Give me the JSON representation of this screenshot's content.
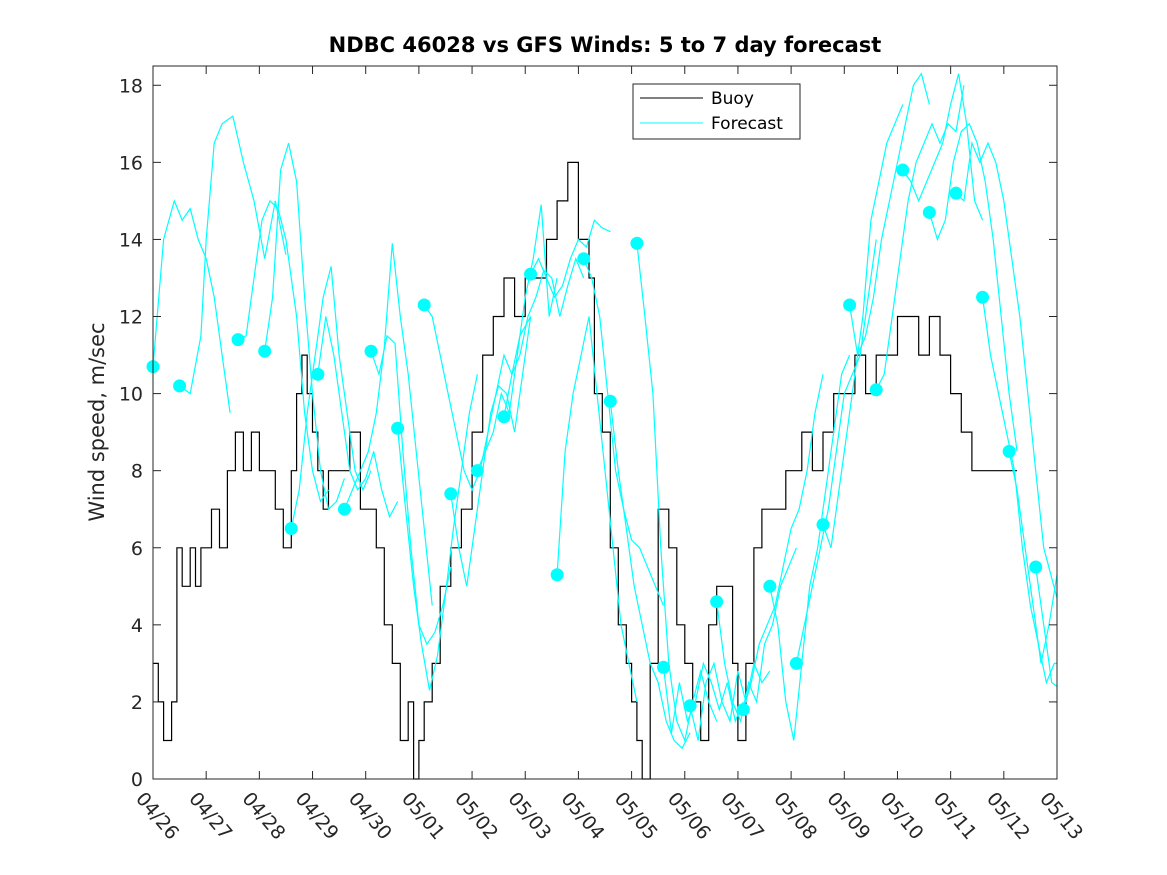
{
  "chart_data": {
    "type": "line",
    "title": "NDBC 46028 vs GFS Winds: 5 to 7 day forecast",
    "ylabel": "Wind speed, m/sec",
    "xlabel": "",
    "ylim": [
      0,
      18.5
    ],
    "xlim": [
      "2024-04-26",
      "2024-05-13"
    ],
    "x_ticks": [
      "04/26",
      "04/27",
      "04/28",
      "04/29",
      "04/30",
      "05/01",
      "05/02",
      "05/03",
      "05/04",
      "05/05",
      "05/06",
      "05/07",
      "05/08",
      "05/09",
      "05/10",
      "05/11",
      "05/12",
      "05/13"
    ],
    "y_ticks": [
      0,
      2,
      4,
      6,
      8,
      10,
      12,
      14,
      16,
      18
    ],
    "legend": {
      "location": "top-center",
      "entries": [
        "Buoy",
        "Forecast"
      ]
    },
    "colors": {
      "buoy": "#000000",
      "forecast": "#00FFFF"
    },
    "buoy": {
      "name": "Buoy",
      "x_days_from_04_26": [
        0.0,
        0.1,
        0.2,
        0.35,
        0.45,
        0.55,
        0.7,
        0.8,
        0.9,
        1.0,
        1.1,
        1.25,
        1.4,
        1.55,
        1.7,
        1.85,
        2.0,
        2.15,
        2.3,
        2.45,
        2.6,
        2.7,
        2.8,
        2.9,
        3.0,
        3.1,
        3.2,
        3.3,
        3.5,
        3.7,
        3.9,
        4.05,
        4.2,
        4.35,
        4.5,
        4.65,
        4.8,
        4.9,
        5.0,
        5.1,
        5.25,
        5.4,
        5.6,
        5.8,
        6.0,
        6.2,
        6.4,
        6.6,
        6.8,
        7.0,
        7.2,
        7.4,
        7.6,
        7.8,
        8.0,
        8.1,
        8.2,
        8.3,
        8.45,
        8.6,
        8.75,
        8.9,
        9.0,
        9.1,
        9.2,
        9.35,
        9.5,
        9.7,
        9.85,
        10.0,
        10.15,
        10.3,
        10.45,
        10.6,
        10.75,
        10.9,
        11.0,
        11.15,
        11.3,
        11.45,
        11.6,
        11.75,
        11.9,
        12.0,
        12.2,
        12.4,
        12.6,
        12.8,
        13.0,
        13.2,
        13.4,
        13.6,
        13.8,
        14.0,
        14.2,
        14.4,
        14.6,
        14.8,
        15.0,
        15.2,
        15.4,
        15.6,
        15.8,
        16.0,
        16.15,
        16.25
      ],
      "values": [
        3,
        2,
        1,
        2,
        6,
        5,
        6,
        5,
        6,
        6,
        7,
        6,
        8,
        9,
        8,
        9,
        8,
        8,
        7,
        6,
        8,
        10,
        11,
        10,
        9,
        8,
        7,
        8,
        8,
        9,
        7,
        7,
        6,
        4,
        3,
        1,
        2,
        0,
        1,
        2,
        3,
        5,
        6,
        7,
        9,
        11,
        12,
        13,
        12,
        13,
        13,
        14,
        15,
        16,
        14,
        14,
        13,
        10,
        9,
        6,
        4,
        3,
        2,
        1,
        0,
        3,
        7,
        6,
        4,
        3,
        2,
        1,
        4,
        5,
        5,
        3,
        1,
        3,
        6,
        7,
        7,
        7,
        8,
        8,
        9,
        8,
        9,
        10,
        10,
        11,
        10,
        11,
        11,
        12,
        12,
        11,
        12,
        11,
        10,
        9,
        8,
        8,
        8,
        8,
        8,
        8
      ]
    },
    "forecasts": [
      {
        "x_days_from_04_26": [
          0.0,
          0.2,
          0.4,
          0.55,
          0.7,
          0.85,
          1.0,
          1.15,
          1.3,
          1.45
        ],
        "values": [
          10.7,
          14.0,
          15.0,
          14.5,
          14.8,
          14.0,
          13.5,
          12.5,
          11.0,
          9.5
        ]
      },
      {
        "x_days_from_04_26": [
          0.5,
          0.7,
          0.9,
          1.0,
          1.15,
          1.3,
          1.5,
          1.7,
          1.9,
          2.1,
          2.3,
          2.5
        ],
        "values": [
          10.2,
          10.0,
          11.5,
          14.0,
          16.5,
          17.0,
          17.2,
          16.0,
          15.0,
          13.5,
          15.0,
          13.6
        ]
      },
      {
        "x_days_from_04_26": [
          1.6,
          1.75,
          1.9,
          2.05,
          2.2,
          2.35,
          2.5,
          2.7,
          2.85,
          3.0,
          3.15,
          3.3
        ],
        "values": [
          11.4,
          11.5,
          13.0,
          14.5,
          15.0,
          14.8,
          14.0,
          12.0,
          9.5,
          8.0,
          7.2,
          7.5
        ]
      },
      {
        "x_days_from_04_26": [
          2.1,
          2.25,
          2.4,
          2.55,
          2.7,
          2.85,
          3.0,
          3.15,
          3.3,
          3.45,
          3.6
        ],
        "values": [
          11.1,
          12.5,
          15.8,
          16.5,
          15.5,
          12.5,
          10.0,
          8.0,
          7.0,
          7.2,
          7.8
        ]
      },
      {
        "x_days_from_04_26": [
          2.6,
          2.75,
          2.9,
          3.05,
          3.2,
          3.35,
          3.5,
          3.65,
          3.8,
          3.95,
          4.1
        ],
        "values": [
          6.5,
          7.5,
          9.5,
          11.0,
          12.5,
          13.3,
          11.0,
          9.5,
          8.0,
          7.5,
          8.0
        ]
      },
      {
        "x_days_from_04_26": [
          3.1,
          3.25,
          3.4,
          3.55,
          3.7,
          3.85,
          4.0,
          4.15,
          4.3,
          4.45,
          4.6
        ],
        "values": [
          10.5,
          12.0,
          11.0,
          9.5,
          8.0,
          7.5,
          7.8,
          8.5,
          7.5,
          6.8,
          7.2
        ]
      },
      {
        "x_days_from_04_26": [
          3.6,
          3.75,
          3.9,
          4.05,
          4.2,
          4.35,
          4.5,
          4.65,
          4.8,
          4.95,
          5.1,
          5.25
        ],
        "values": [
          7.0,
          7.5,
          8.0,
          8.5,
          9.5,
          11.2,
          13.9,
          12.0,
          10.5,
          8.5,
          6.5,
          4.5
        ]
      },
      {
        "x_days_from_04_26": [
          4.1,
          4.25,
          4.4,
          4.55,
          4.7,
          4.85,
          5.0,
          5.15,
          5.3,
          5.45,
          5.6
        ],
        "values": [
          11.1,
          10.5,
          11.5,
          11.3,
          8.5,
          6.0,
          4.0,
          3.5,
          3.8,
          4.5,
          5.5
        ]
      },
      {
        "x_days_from_04_26": [
          4.6,
          4.75,
          4.9,
          5.05,
          5.2,
          5.35,
          5.5,
          5.65,
          5.8,
          5.95,
          6.1
        ],
        "values": [
          9.1,
          7.0,
          5.0,
          3.5,
          2.3,
          3.2,
          4.8,
          6.5,
          8.0,
          9.5,
          10.5
        ]
      },
      {
        "x_days_from_04_26": [
          5.1,
          5.25,
          5.4,
          5.55,
          5.7,
          5.85,
          6.0,
          6.15,
          6.3,
          6.45,
          6.6,
          6.75,
          6.9,
          7.1
        ],
        "values": [
          12.3,
          12.0,
          11.0,
          10.0,
          9.0,
          8.0,
          7.5,
          8.0,
          9.0,
          10.0,
          11.0,
          10.5,
          11.5,
          12.0
        ]
      },
      {
        "x_days_from_04_26": [
          5.6,
          5.75,
          5.9,
          6.05,
          6.2,
          6.35,
          6.5,
          6.65,
          6.8,
          6.95,
          7.1
        ],
        "values": [
          7.4,
          6.0,
          5.0,
          6.5,
          8.0,
          9.5,
          10.2,
          10.0,
          9.0,
          10.5,
          12.0
        ]
      },
      {
        "x_days_from_04_26": [
          6.1,
          6.25,
          6.4,
          6.55,
          6.7,
          6.85,
          7.0,
          7.15,
          7.3,
          7.45,
          7.6
        ],
        "values": [
          8.0,
          8.5,
          9.0,
          10.0,
          9.5,
          11.0,
          12.5,
          13.5,
          14.9,
          12.0,
          13.0
        ]
      },
      {
        "x_days_from_04_26": [
          6.6,
          6.75,
          6.9,
          7.05,
          7.2,
          7.35,
          7.5,
          7.65,
          7.8,
          7.95,
          8.1
        ],
        "values": [
          9.4,
          10.5,
          11.0,
          12.0,
          12.5,
          13.2,
          13.0,
          12.0,
          12.8,
          13.5,
          13.0
        ]
      },
      {
        "x_days_from_04_26": [
          7.1,
          7.25,
          7.4,
          7.55,
          7.7,
          7.85,
          8.0,
          8.15,
          8.3,
          8.45,
          8.6
        ],
        "values": [
          13.1,
          13.5,
          13.0,
          12.5,
          12.8,
          13.5,
          14.0,
          13.8,
          14.5,
          14.3,
          14.2
        ]
      },
      {
        "x_days_from_04_26": [
          7.6,
          7.75,
          7.9,
          8.05,
          8.2,
          8.35,
          8.5,
          8.65,
          8.8,
          8.95,
          9.1
        ],
        "values": [
          5.3,
          8.5,
          10.0,
          11.0,
          12.0,
          10.0,
          8.0,
          6.0,
          4.0,
          3.0,
          2.0
        ]
      },
      {
        "x_days_from_04_26": [
          8.1,
          8.25,
          8.4,
          8.55,
          8.7,
          8.85,
          9.0,
          9.15,
          9.3,
          9.45,
          9.6
        ],
        "values": [
          13.5,
          13.0,
          12.0,
          10.0,
          8.0,
          7.0,
          6.2,
          6.0,
          5.5,
          5.0,
          4.5
        ]
      },
      {
        "x_days_from_04_26": [
          8.6,
          8.75,
          8.9,
          9.05,
          9.2,
          9.35,
          9.5,
          9.65,
          9.8,
          9.95,
          10.1
        ],
        "values": [
          9.8,
          8.0,
          6.5,
          5.0,
          4.0,
          3.0,
          2.5,
          1.5,
          1.0,
          0.8,
          1.2
        ]
      },
      {
        "x_days_from_04_26": [
          9.1,
          9.25,
          9.4,
          9.55,
          9.7,
          9.85,
          10.0,
          10.15,
          10.3,
          10.45,
          10.6
        ],
        "values": [
          13.9,
          12.0,
          10.0,
          6.0,
          3.0,
          1.5,
          1.0,
          2.0,
          2.8,
          2.0,
          1.5
        ]
      },
      {
        "x_days_from_04_26": [
          9.6,
          9.75,
          9.9,
          10.05,
          10.2,
          10.35,
          10.5,
          10.65,
          10.8,
          10.95,
          11.1
        ],
        "values": [
          2.9,
          1.2,
          2.5,
          1.5,
          2.0,
          3.0,
          2.5,
          1.8,
          2.5,
          1.5,
          2.0
        ]
      },
      {
        "x_days_from_04_26": [
          10.1,
          10.25,
          10.4,
          10.55,
          10.7,
          10.85,
          11.0,
          11.15,
          11.3,
          11.45,
          11.6
        ],
        "values": [
          1.9,
          1.0,
          2.5,
          3.0,
          2.0,
          1.5,
          2.8,
          2.0,
          3.0,
          2.5,
          2.8
        ]
      },
      {
        "x_days_from_04_26": [
          10.6,
          10.75,
          10.9,
          11.05,
          11.2,
          11.35,
          11.5,
          11.65,
          11.8,
          11.95,
          12.1
        ],
        "values": [
          4.6,
          3.0,
          2.0,
          1.5,
          2.5,
          2.0,
          3.5,
          4.0,
          5.0,
          5.5,
          6.0
        ]
      },
      {
        "x_days_from_04_26": [
          11.1,
          11.25,
          11.4,
          11.55,
          11.7,
          11.85,
          12.0,
          12.15,
          12.3,
          12.45,
          12.6
        ],
        "values": [
          1.8,
          2.5,
          3.5,
          4.0,
          4.5,
          5.5,
          6.5,
          7.0,
          8.0,
          9.5,
          10.5
        ]
      },
      {
        "x_days_from_04_26": [
          11.6,
          11.75,
          11.9,
          12.05,
          12.2,
          12.35,
          12.5,
          12.65,
          12.8,
          12.95,
          13.1
        ],
        "values": [
          5.0,
          4.0,
          2.0,
          1.0,
          3.0,
          5.0,
          6.0,
          7.5,
          9.0,
          10.5,
          11.0
        ]
      },
      {
        "x_days_from_04_26": [
          12.1,
          12.25,
          12.4,
          12.55,
          12.7,
          12.85,
          13.0,
          13.15,
          13.3,
          13.45,
          13.6
        ],
        "values": [
          3.0,
          4.0,
          5.0,
          6.0,
          7.0,
          8.5,
          10.0,
          10.5,
          11.0,
          12.5,
          14.0
        ]
      },
      {
        "x_days_from_04_26": [
          12.6,
          12.75,
          12.9,
          13.05,
          13.2,
          13.35,
          13.5,
          13.65,
          13.8,
          13.95,
          14.1
        ],
        "values": [
          6.6,
          6.0,
          7.5,
          9.0,
          10.5,
          12.0,
          14.5,
          15.5,
          16.5,
          17.0,
          17.5
        ]
      },
      {
        "x_days_from_04_26": [
          13.1,
          13.25,
          13.4,
          13.55,
          13.7,
          13.85,
          14.0,
          14.15,
          14.3,
          14.45,
          14.6
        ],
        "values": [
          12.3,
          11.0,
          11.5,
          12.5,
          14.0,
          15.0,
          16.0,
          17.0,
          18.0,
          18.3,
          17.5
        ]
      },
      {
        "x_days_from_04_26": [
          13.6,
          13.75,
          13.9,
          14.05,
          14.2,
          14.35,
          14.5,
          14.65,
          14.8,
          14.95,
          15.1,
          15.25
        ],
        "values": [
          10.1,
          10.5,
          12.0,
          13.5,
          15.0,
          16.0,
          16.5,
          17.0,
          16.5,
          17.0,
          16.8,
          18.0
        ]
      },
      {
        "x_days_from_04_26": [
          14.1,
          14.25,
          14.4,
          14.55,
          14.7,
          14.85,
          15.0,
          15.15,
          15.3,
          15.45,
          15.6
        ],
        "values": [
          15.8,
          15.5,
          15.0,
          15.5,
          16.0,
          16.5,
          17.5,
          18.3,
          17.0,
          15.0,
          14.5
        ]
      },
      {
        "x_days_from_04_26": [
          14.6,
          14.75,
          14.9,
          15.05,
          15.2,
          15.35,
          15.5,
          15.65,
          15.8,
          15.95,
          16.1,
          16.25
        ],
        "values": [
          14.7,
          14.0,
          14.5,
          16.0,
          16.8,
          17.0,
          16.5,
          15.5,
          14.0,
          12.0,
          10.0,
          8.5
        ]
      },
      {
        "x_days_from_04_26": [
          15.1,
          15.25,
          15.4,
          15.55,
          15.7,
          15.85,
          16.0,
          16.15,
          16.3,
          16.45,
          16.6,
          16.75,
          17.0
        ],
        "values": [
          15.2,
          15.0,
          16.5,
          16.0,
          16.5,
          16.0,
          15.0,
          13.5,
          12.0,
          10.0,
          8.0,
          6.0,
          4.7
        ]
      },
      {
        "x_days_from_04_26": [
          15.6,
          15.75,
          15.9,
          16.05,
          16.2,
          16.35,
          16.5,
          16.65,
          16.8,
          16.95,
          17.0
        ],
        "values": [
          12.5,
          11.0,
          10.0,
          9.0,
          8.0,
          6.0,
          4.5,
          3.5,
          2.5,
          3.0,
          3.0
        ]
      },
      {
        "x_days_from_04_26": [
          16.1,
          16.25,
          16.4,
          16.55,
          16.7,
          16.85,
          17.0
        ],
        "values": [
          8.5,
          7.5,
          6.0,
          4.5,
          3.0,
          4.0,
          5.3
        ]
      },
      {
        "x_days_from_04_26": [
          16.6,
          16.75,
          16.9,
          17.0
        ],
        "values": [
          5.5,
          4.0,
          2.5,
          2.4
        ]
      }
    ]
  }
}
